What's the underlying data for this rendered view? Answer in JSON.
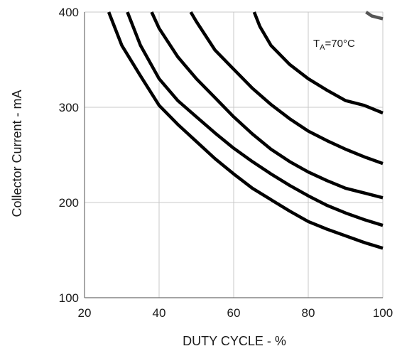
{
  "chart_data": {
    "type": "line",
    "title": "",
    "xlabel": "DUTY CYCLE - %",
    "ylabel": "Collector Current - mA",
    "xlim": [
      20,
      100
    ],
    "ylim": [
      100,
      400
    ],
    "xticks": [
      20,
      40,
      60,
      80,
      100
    ],
    "yticks": [
      100,
      200,
      300,
      400
    ],
    "grid": true,
    "annotation": {
      "main": "T",
      "sub": "A",
      "rest": "=70°C"
    },
    "series_color": "#000000",
    "partial_series_color": "#555555",
    "series": [
      {
        "x": [
          26.5,
          30,
          35,
          40,
          45,
          50,
          55,
          60,
          65,
          70,
          75,
          80,
          85,
          90,
          95,
          100
        ],
        "y": [
          400,
          365,
          333,
          302,
          282,
          264,
          246,
          230,
          215,
          203,
          191,
          180,
          172,
          165,
          158,
          152
        ]
      },
      {
        "x": [
          31.5,
          35,
          40,
          45,
          50,
          55,
          60,
          65,
          70,
          75,
          80,
          85,
          90,
          95,
          100
        ],
        "y": [
          400,
          365,
          330,
          307,
          290,
          273,
          257,
          243,
          230,
          218,
          207,
          197,
          189,
          182,
          176
        ]
      },
      {
        "x": [
          38,
          40,
          45,
          50,
          55,
          60,
          65,
          70,
          75,
          80,
          85,
          90,
          95,
          100
        ],
        "y": [
          400,
          383,
          353,
          330,
          310,
          290,
          272,
          256,
          243,
          232,
          223,
          215,
          210,
          205
        ]
      },
      {
        "x": [
          48.5,
          50,
          55,
          60,
          65,
          70,
          75,
          80,
          85,
          90,
          95,
          100
        ],
        "y": [
          400,
          390,
          360,
          340,
          320,
          303,
          288,
          275,
          265,
          256,
          248,
          241
        ]
      },
      {
        "x": [
          65.5,
          67,
          70,
          75,
          80,
          85,
          90,
          95,
          100
        ],
        "y": [
          400,
          385,
          365,
          345,
          330,
          318,
          307,
          302,
          294
        ]
      },
      {
        "partial": true,
        "x": [
          95.5,
          97,
          100
        ],
        "y": [
          400,
          396,
          393
        ]
      }
    ]
  }
}
